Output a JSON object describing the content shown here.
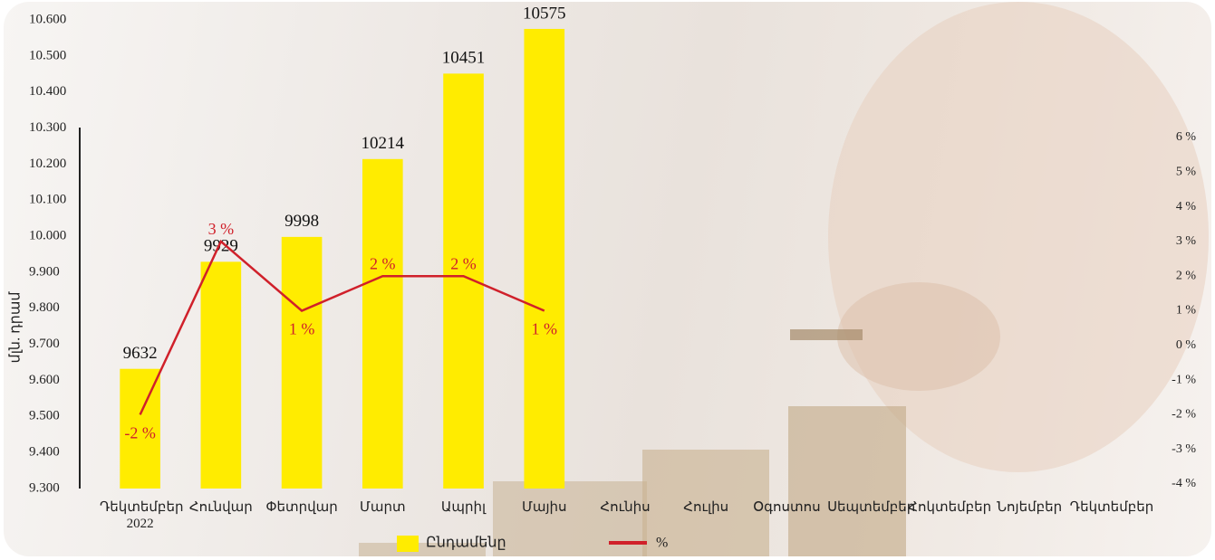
{
  "chart_data": {
    "type": "combo",
    "y_label": "մլն. դրամ",
    "categories": [
      "Դեկտեմբեր 2022",
      "Հունվար",
      "Փետրվար",
      "Մարտ",
      "Ապրիլ",
      "Մայիս",
      "Հունիս",
      "Հուլիս",
      "Օգոստոս",
      "Սեպտեմբեր",
      "Հոկտեմբեր",
      "Նոյեմբեր",
      "Դեկտեմբեր"
    ],
    "series": [
      {
        "name": "Ընդամենը",
        "type": "bar",
        "color": "#ffec00",
        "values": [
          9632,
          9929,
          9998,
          10214,
          10451,
          10575,
          null,
          null,
          null,
          null,
          null,
          null,
          null
        ]
      },
      {
        "name": "%",
        "type": "line",
        "axis": "y2",
        "color": "#d0202a",
        "values": [
          -2,
          3,
          1,
          2,
          2,
          1,
          null,
          null,
          null,
          null,
          null,
          null,
          null
        ],
        "value_labels": [
          "-2 %",
          "3 %",
          "1 %",
          "2 %",
          "2 %",
          "1 %",
          null,
          null,
          null,
          null,
          null,
          null,
          null
        ]
      }
    ],
    "ylim": [
      9300,
      10600
    ],
    "yticks": [
      {
        "value": 9300,
        "label": "9.300"
      },
      {
        "value": 9400,
        "label": "9.400"
      },
      {
        "value": 9500,
        "label": "9.500"
      },
      {
        "value": 9600,
        "label": "9.600"
      },
      {
        "value": 9700,
        "label": "9.700"
      },
      {
        "value": 9800,
        "label": "9.800"
      },
      {
        "value": 9900,
        "label": "9.900"
      },
      {
        "value": 10000,
        "label": "10.000"
      },
      {
        "value": 10100,
        "label": "10.100"
      },
      {
        "value": 10200,
        "label": "10.200"
      },
      {
        "value": 10300,
        "label": "10.300"
      },
      {
        "value": 10400,
        "label": "10.400"
      },
      {
        "value": 10500,
        "label": "10.500"
      },
      {
        "value": 10600,
        "label": "10.600"
      }
    ],
    "y2lim": [
      -4,
      6
    ],
    "y2ticks": [
      {
        "value": -4,
        "label": "-4 %"
      },
      {
        "value": -3,
        "label": "-3 %"
      },
      {
        "value": -2,
        "label": "-2 %"
      },
      {
        "value": -1,
        "label": "-1 %"
      },
      {
        "value": 0,
        "label": "0 %"
      },
      {
        "value": 1,
        "label": "1 %"
      },
      {
        "value": 2,
        "label": "2 %"
      },
      {
        "value": 3,
        "label": "3 %"
      },
      {
        "value": 4,
        "label": "4 %"
      },
      {
        "value": 5,
        "label": "5 %"
      },
      {
        "value": 6,
        "label": "6 %"
      }
    ],
    "grid": false,
    "legend": "bottom"
  }
}
